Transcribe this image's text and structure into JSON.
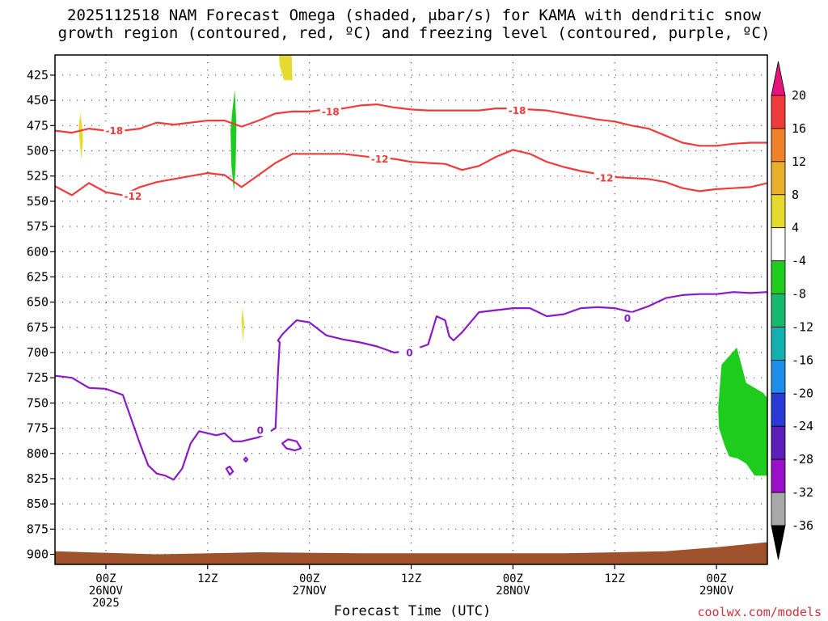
{
  "title_line_1": "2025112518 NAM Forecast Omega (shaded, μbar/s) for KAMA with dendritic snow",
  "title_line_2": "growth region (contoured, red, ºC) and freezing level (contoured, purple, ºC)",
  "credit": "coolwx.com/models",
  "chart_data": {
    "type": "contour",
    "title": "2025112518 NAM Forecast Omega (shaded, μbar/s) for KAMA with dendritic snow growth region (contoured, red, ºC) and freezing level (contoured, purple, ºC)",
    "xlabel": "Forecast Time (UTC)",
    "ylabel": "",
    "x_unit": "hours after 2025-11-25 18Z",
    "xlim": [
      0,
      84
    ],
    "ylim": [
      405,
      910
    ],
    "y_inverted": true,
    "grid": true,
    "y_ticks": [
      425,
      450,
      475,
      500,
      525,
      550,
      575,
      600,
      625,
      650,
      675,
      700,
      725,
      750,
      775,
      800,
      825,
      850,
      875,
      900
    ],
    "x_ticks": [
      {
        "x": 6,
        "lines": [
          "00Z",
          "26NOV",
          "2025"
        ]
      },
      {
        "x": 18,
        "lines": [
          "12Z"
        ]
      },
      {
        "x": 30,
        "lines": [
          "00Z",
          "27NOV"
        ]
      },
      {
        "x": 42,
        "lines": [
          "12Z"
        ]
      },
      {
        "x": 54,
        "lines": [
          "00Z",
          "28NOV"
        ]
      },
      {
        "x": 66,
        "lines": [
          "12Z"
        ]
      },
      {
        "x": 78,
        "lines": [
          "00Z",
          "29NOV"
        ]
      }
    ],
    "colorbar": {
      "ticks": [
        20,
        16,
        12,
        8,
        4,
        -4,
        -8,
        -12,
        -16,
        -20,
        -24,
        -28,
        -32,
        -36
      ],
      "bins": [
        {
          "range": [
            20,
            99
          ],
          "color": "#e6127a"
        },
        {
          "range": [
            16,
            20
          ],
          "color": "#ef3b3b"
        },
        {
          "range": [
            12,
            16
          ],
          "color": "#f0802a"
        },
        {
          "range": [
            8,
            12
          ],
          "color": "#e8ae2e"
        },
        {
          "range": [
            4,
            8
          ],
          "color": "#e6da2e"
        },
        {
          "range": [
            -4,
            4
          ],
          "color": "#ffffff"
        },
        {
          "range": [
            -8,
            -4
          ],
          "color": "#1dcc1d"
        },
        {
          "range": [
            -12,
            -8
          ],
          "color": "#17b86c"
        },
        {
          "range": [
            -16,
            -12
          ],
          "color": "#13b0b0"
        },
        {
          "range": [
            -20,
            -16
          ],
          "color": "#1f8eea"
        },
        {
          "range": [
            -24,
            -20
          ],
          "color": "#2a3ad6"
        },
        {
          "range": [
            -28,
            -24
          ],
          "color": "#5b1fb8"
        },
        {
          "range": [
            -32,
            -28
          ],
          "color": "#9a10c8"
        },
        {
          "range": [
            -36,
            -32
          ],
          "color": "#a8a8a8"
        },
        {
          "range": [
            -99,
            -36
          ],
          "color": "#000000"
        }
      ]
    },
    "shaded_regions": [
      {
        "value_range": [
          4,
          8
        ],
        "color": "#e6da2e",
        "points": [
          [
            3.0,
            463
          ],
          [
            3.2,
            476
          ],
          [
            3.3,
            490
          ],
          [
            3.1,
            508
          ],
          [
            2.9,
            490
          ],
          [
            2.8,
            476
          ]
        ]
      },
      {
        "value_range": [
          -8,
          -4
        ],
        "color": "#1dcc1d",
        "points": [
          [
            20.9,
            461
          ],
          [
            21.2,
            440
          ],
          [
            21.4,
            475
          ],
          [
            21.3,
            515
          ],
          [
            21.1,
            540
          ],
          [
            20.8,
            515
          ],
          [
            20.7,
            480
          ]
        ]
      },
      {
        "value_range": [
          4,
          8
        ],
        "color": "#e6da2e",
        "points": [
          [
            26.4,
            404
          ],
          [
            27.9,
            404
          ],
          [
            28.0,
            430
          ],
          [
            27.0,
            430
          ],
          [
            26.5,
            415
          ]
        ]
      },
      {
        "value_range": [
          4,
          8
        ],
        "color": "#e6da2e",
        "points": [
          [
            22.1,
            655
          ],
          [
            22.3,
            670
          ],
          [
            22.2,
            690
          ],
          [
            22.0,
            670
          ]
        ]
      },
      {
        "value_range": [
          -8,
          -4
        ],
        "color": "#1dcc1d",
        "points": [
          [
            78.6,
            712
          ],
          [
            80.4,
            695
          ],
          [
            81.5,
            730
          ],
          [
            83.5,
            740
          ],
          [
            84,
            745
          ],
          [
            84,
            822
          ],
          [
            82.5,
            822
          ],
          [
            81.5,
            810
          ],
          [
            80.5,
            805
          ],
          [
            79.5,
            803
          ],
          [
            79.0,
            793
          ],
          [
            78.3,
            775
          ],
          [
            78.2,
            755
          ]
        ]
      }
    ],
    "terrain": {
      "color": "#a0522d",
      "top": [
        [
          0,
          897
        ],
        [
          12,
          900
        ],
        [
          24,
          898
        ],
        [
          36,
          899
        ],
        [
          48,
          899
        ],
        [
          60,
          899
        ],
        [
          72,
          897
        ],
        [
          78,
          893
        ],
        [
          84,
          888
        ]
      ]
    },
    "series": [
      {
        "name": "-18",
        "color": "#ef3b3b",
        "label_at": [
          [
            7,
            480
          ],
          [
            32.5,
            461
          ],
          [
            54.5,
            460
          ]
        ],
        "x": [
          0,
          2,
          4,
          6,
          8,
          10,
          12,
          14,
          16,
          18,
          20,
          22,
          24,
          26,
          28,
          30,
          32,
          34,
          36,
          38,
          40,
          42,
          44,
          46,
          48,
          50,
          52,
          54,
          56,
          58,
          60,
          62,
          64,
          66,
          68,
          70,
          72,
          74,
          76,
          78,
          80,
          82,
          84
        ],
        "values": [
          480,
          482,
          478,
          480,
          480,
          478,
          472,
          474,
          472,
          470,
          470,
          476,
          470,
          463,
          461,
          461,
          459,
          458,
          455,
          454,
          457,
          459,
          460,
          460,
          460,
          460,
          458,
          458,
          459,
          460,
          463,
          466,
          469,
          471,
          475,
          478,
          485,
          492,
          495,
          495,
          493,
          492,
          492
        ]
      },
      {
        "name": "-12",
        "color": "#ef3b3b",
        "label_at": [
          [
            9.2,
            545
          ],
          [
            38.3,
            508
          ],
          [
            64.8,
            527
          ]
        ],
        "x": [
          0,
          2,
          4,
          6,
          8,
          10,
          12,
          14,
          16,
          18,
          20,
          22,
          24,
          26,
          28,
          30,
          32,
          34,
          36,
          38,
          40,
          42,
          44,
          46,
          48,
          50,
          52,
          54,
          56,
          58,
          60,
          62,
          64,
          66,
          68,
          70,
          72,
          74,
          76,
          78,
          80,
          82,
          84
        ],
        "values": [
          535,
          544,
          532,
          541,
          544,
          536,
          531,
          528,
          525,
          522,
          524,
          536,
          524,
          512,
          503,
          503,
          503,
          503,
          505,
          507,
          508,
          511,
          512,
          513,
          519,
          515,
          506,
          499,
          503,
          511,
          516,
          520,
          523,
          526,
          527,
          528,
          531,
          537,
          540,
          538,
          537,
          536,
          532
        ]
      }
    ],
    "freezing_level": {
      "name": "0",
      "color": "#8a1ac8",
      "label_at": [
        [
          24.2,
          777
        ],
        [
          41.8,
          700
        ],
        [
          67.5,
          666
        ]
      ],
      "x": [
        0,
        2,
        4,
        6,
        8,
        9,
        10,
        11,
        12,
        13,
        14,
        15,
        16,
        17,
        18,
        19,
        20,
        21,
        22,
        23,
        24,
        25,
        26,
        26.3,
        26.5,
        26.3,
        26.8,
        27.5,
        28.5,
        30,
        32,
        34,
        36,
        38,
        40,
        42,
        44,
        45,
        46,
        46.5,
        47,
        48,
        50,
        52,
        54,
        56,
        58,
        60,
        62,
        64,
        66,
        68,
        70,
        72,
        74,
        76,
        78,
        80,
        82,
        84
      ],
      "values": [
        723,
        725,
        735,
        736,
        742,
        766,
        790,
        812,
        820,
        822,
        826,
        815,
        790,
        778,
        780,
        782,
        780,
        788,
        788,
        786,
        784,
        780,
        775,
        720,
        690,
        688,
        682,
        676,
        668,
        670,
        683,
        687,
        690,
        694,
        700,
        698,
        692,
        664,
        668,
        684,
        688,
        680,
        660,
        658,
        656,
        656,
        664,
        662,
        656,
        655,
        656,
        660,
        654,
        646,
        643,
        642,
        642,
        640,
        641,
        640
      ],
      "islands": [
        {
          "x": [
            26.8,
            27.5,
            28.5,
            29.0,
            28.3,
            27.3,
            26.8
          ],
          "values": [
            790,
            786,
            788,
            795,
            797,
            795,
            790
          ]
        },
        {
          "x": [
            20.2,
            20.6,
            21.0,
            20.6,
            20.2
          ],
          "values": [
            815,
            813,
            818,
            821,
            815
          ]
        },
        {
          "x": [
            22.3,
            22.5,
            22.7,
            22.5,
            22.3
          ],
          "values": [
            806,
            804,
            806,
            808,
            806
          ]
        }
      ]
    }
  }
}
